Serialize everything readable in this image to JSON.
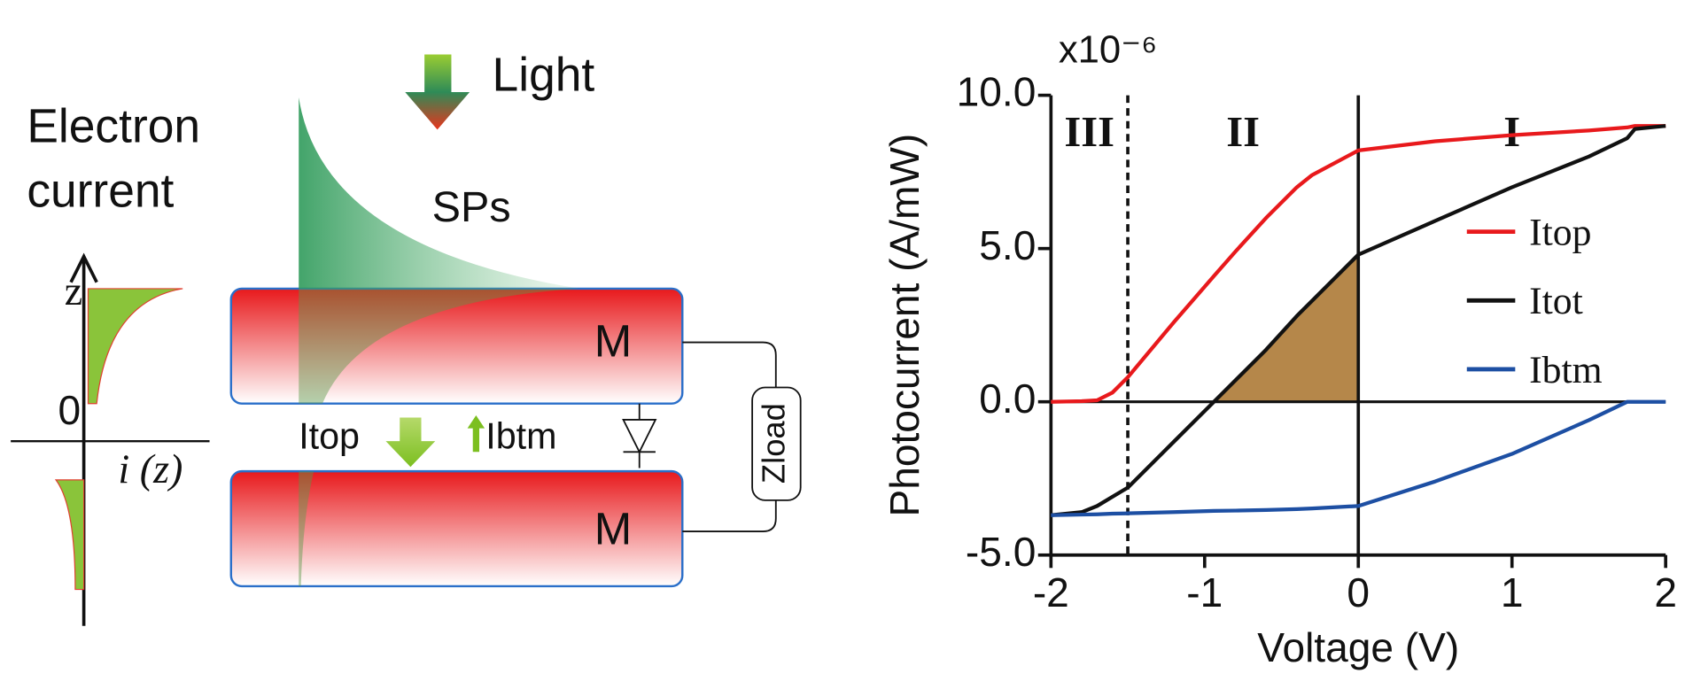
{
  "diagram": {
    "light": "Light",
    "electron": "Electron",
    "current": "current",
    "sps": "SPs",
    "z_axis": "z",
    "origin": "0",
    "i_axis": "i (z)",
    "metal_top": "M",
    "metal_bottom": "M",
    "i_top": "Itop",
    "i_btm": "Ibtm",
    "z_load": "Zload"
  },
  "chart_data": {
    "type": "line",
    "x_label": "Voltage (V)",
    "y_label": "Photocurrent (A/mW)",
    "y_multiplier": "x10⁻⁶",
    "x": [
      -2,
      -1.8,
      -1.7,
      -1.6,
      -1.5,
      -1.2,
      -0.94,
      -0.8,
      -0.6,
      -0.4,
      -0.3,
      0,
      0.5,
      1,
      1.5,
      1.75,
      1.8,
      2
    ],
    "series": [
      {
        "name": "Itop",
        "color": "#e8191c",
        "values": [
          0,
          0.02,
          0.05,
          0.3,
          0.8,
          2.6,
          4.1,
          4.9,
          6.0,
          7.0,
          7.4,
          8.2,
          8.5,
          8.7,
          8.85,
          8.95,
          9.0,
          9.0
        ]
      },
      {
        "name": "Itot",
        "color": "#111111",
        "values": [
          -3.7,
          -3.6,
          -3.4,
          -3.1,
          -2.8,
          -1.3,
          0,
          0.7,
          1.7,
          2.8,
          3.3,
          4.8,
          5.9,
          7.0,
          8.0,
          8.6,
          8.9,
          9.0
        ]
      },
      {
        "name": "Ibtm",
        "color": "#1d4fa3",
        "values": [
          -3.7,
          -3.68,
          -3.67,
          -3.65,
          -3.64,
          -3.6,
          -3.56,
          -3.55,
          -3.53,
          -3.5,
          -3.48,
          -3.4,
          -2.6,
          -1.7,
          -0.6,
          0,
          0,
          0
        ]
      }
    ],
    "shade_color": "#b5874a",
    "regions": [
      "III",
      "II",
      "I"
    ],
    "reference_lines": [
      {
        "x": -1.5,
        "style": "dashed"
      },
      {
        "x": 0,
        "style": "solid"
      }
    ],
    "xlim": [
      -2,
      2
    ],
    "xticks": [
      -2,
      -1,
      0,
      1,
      2
    ],
    "ylim": [
      -5,
      10
    ],
    "yticks": [
      {
        "value": -5,
        "label": "-5.0"
      },
      {
        "value": 0,
        "label": "0.0"
      },
      {
        "value": 5,
        "label": "5.0"
      },
      {
        "value": 10,
        "label": "10.0"
      }
    ],
    "legend": "right"
  }
}
